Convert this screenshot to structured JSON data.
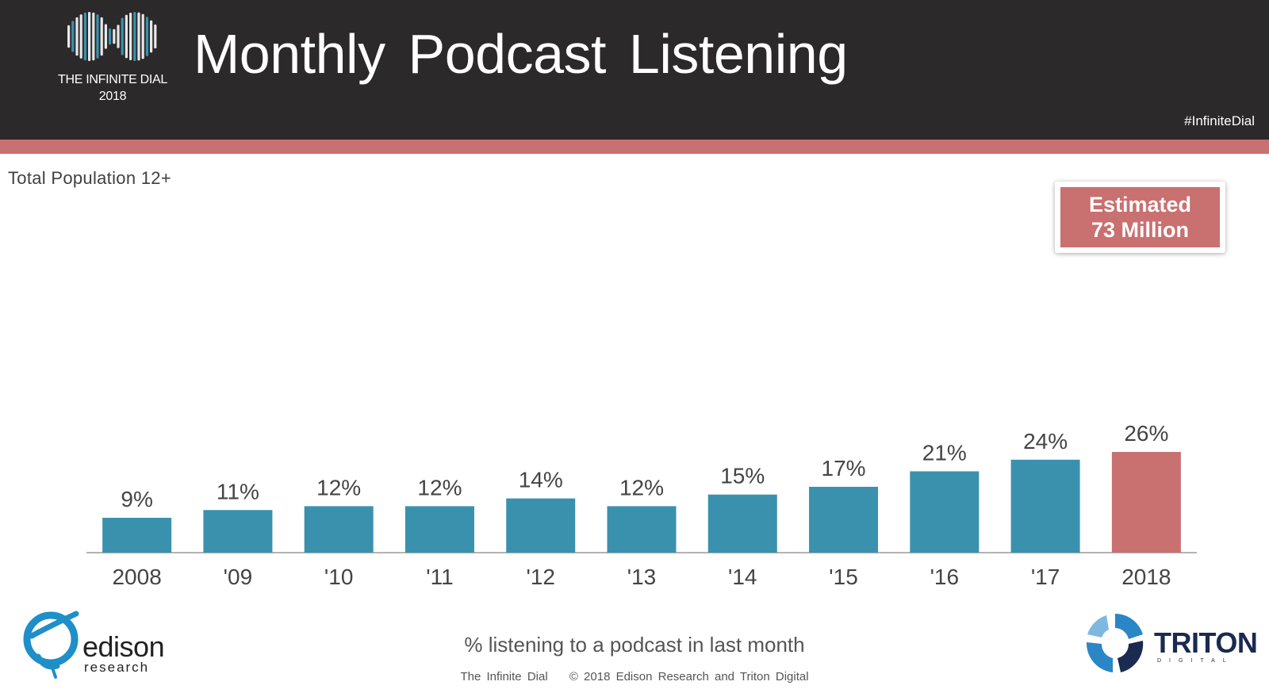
{
  "header": {
    "brand_line1": "THE INFINITE DIAL",
    "brand_line2": "2018",
    "title": "Monthly Podcast Listening",
    "hashtag": "#InfiniteDial"
  },
  "population_label": "Total Population 12+",
  "estimate": {
    "line1": "Estimated",
    "line2": "73 Million"
  },
  "chart_data": {
    "type": "bar",
    "title": "Monthly Podcast Listening",
    "subtitle": "Total Population 12+",
    "categories": [
      "2008",
      "'09",
      "'10",
      "'11",
      "'12",
      "'13",
      "'14",
      "'15",
      "'16",
      "'17",
      "2018"
    ],
    "values": [
      9,
      11,
      12,
      12,
      14,
      12,
      15,
      17,
      21,
      24,
      26
    ],
    "value_labels": [
      "9%",
      "11%",
      "12%",
      "12%",
      "14%",
      "12%",
      "15%",
      "17%",
      "21%",
      "24%",
      "26%"
    ],
    "xlabel": "% listening to a podcast in last month",
    "ylabel": "",
    "ylim": [
      0,
      26
    ],
    "grid": false,
    "legend": "none",
    "colors": {
      "default": "#3a91ae",
      "highlight": "#c97070"
    },
    "highlight_index": 10
  },
  "footer": {
    "x_caption": "% listening to a podcast in last month",
    "source": "The Infinite Dial",
    "copyright": "© 2018 Edison Research and Triton Digital",
    "edison_name": "edison",
    "edison_sub": "research",
    "triton_name": "TRITON",
    "triton_sub": "DIGITAL"
  }
}
